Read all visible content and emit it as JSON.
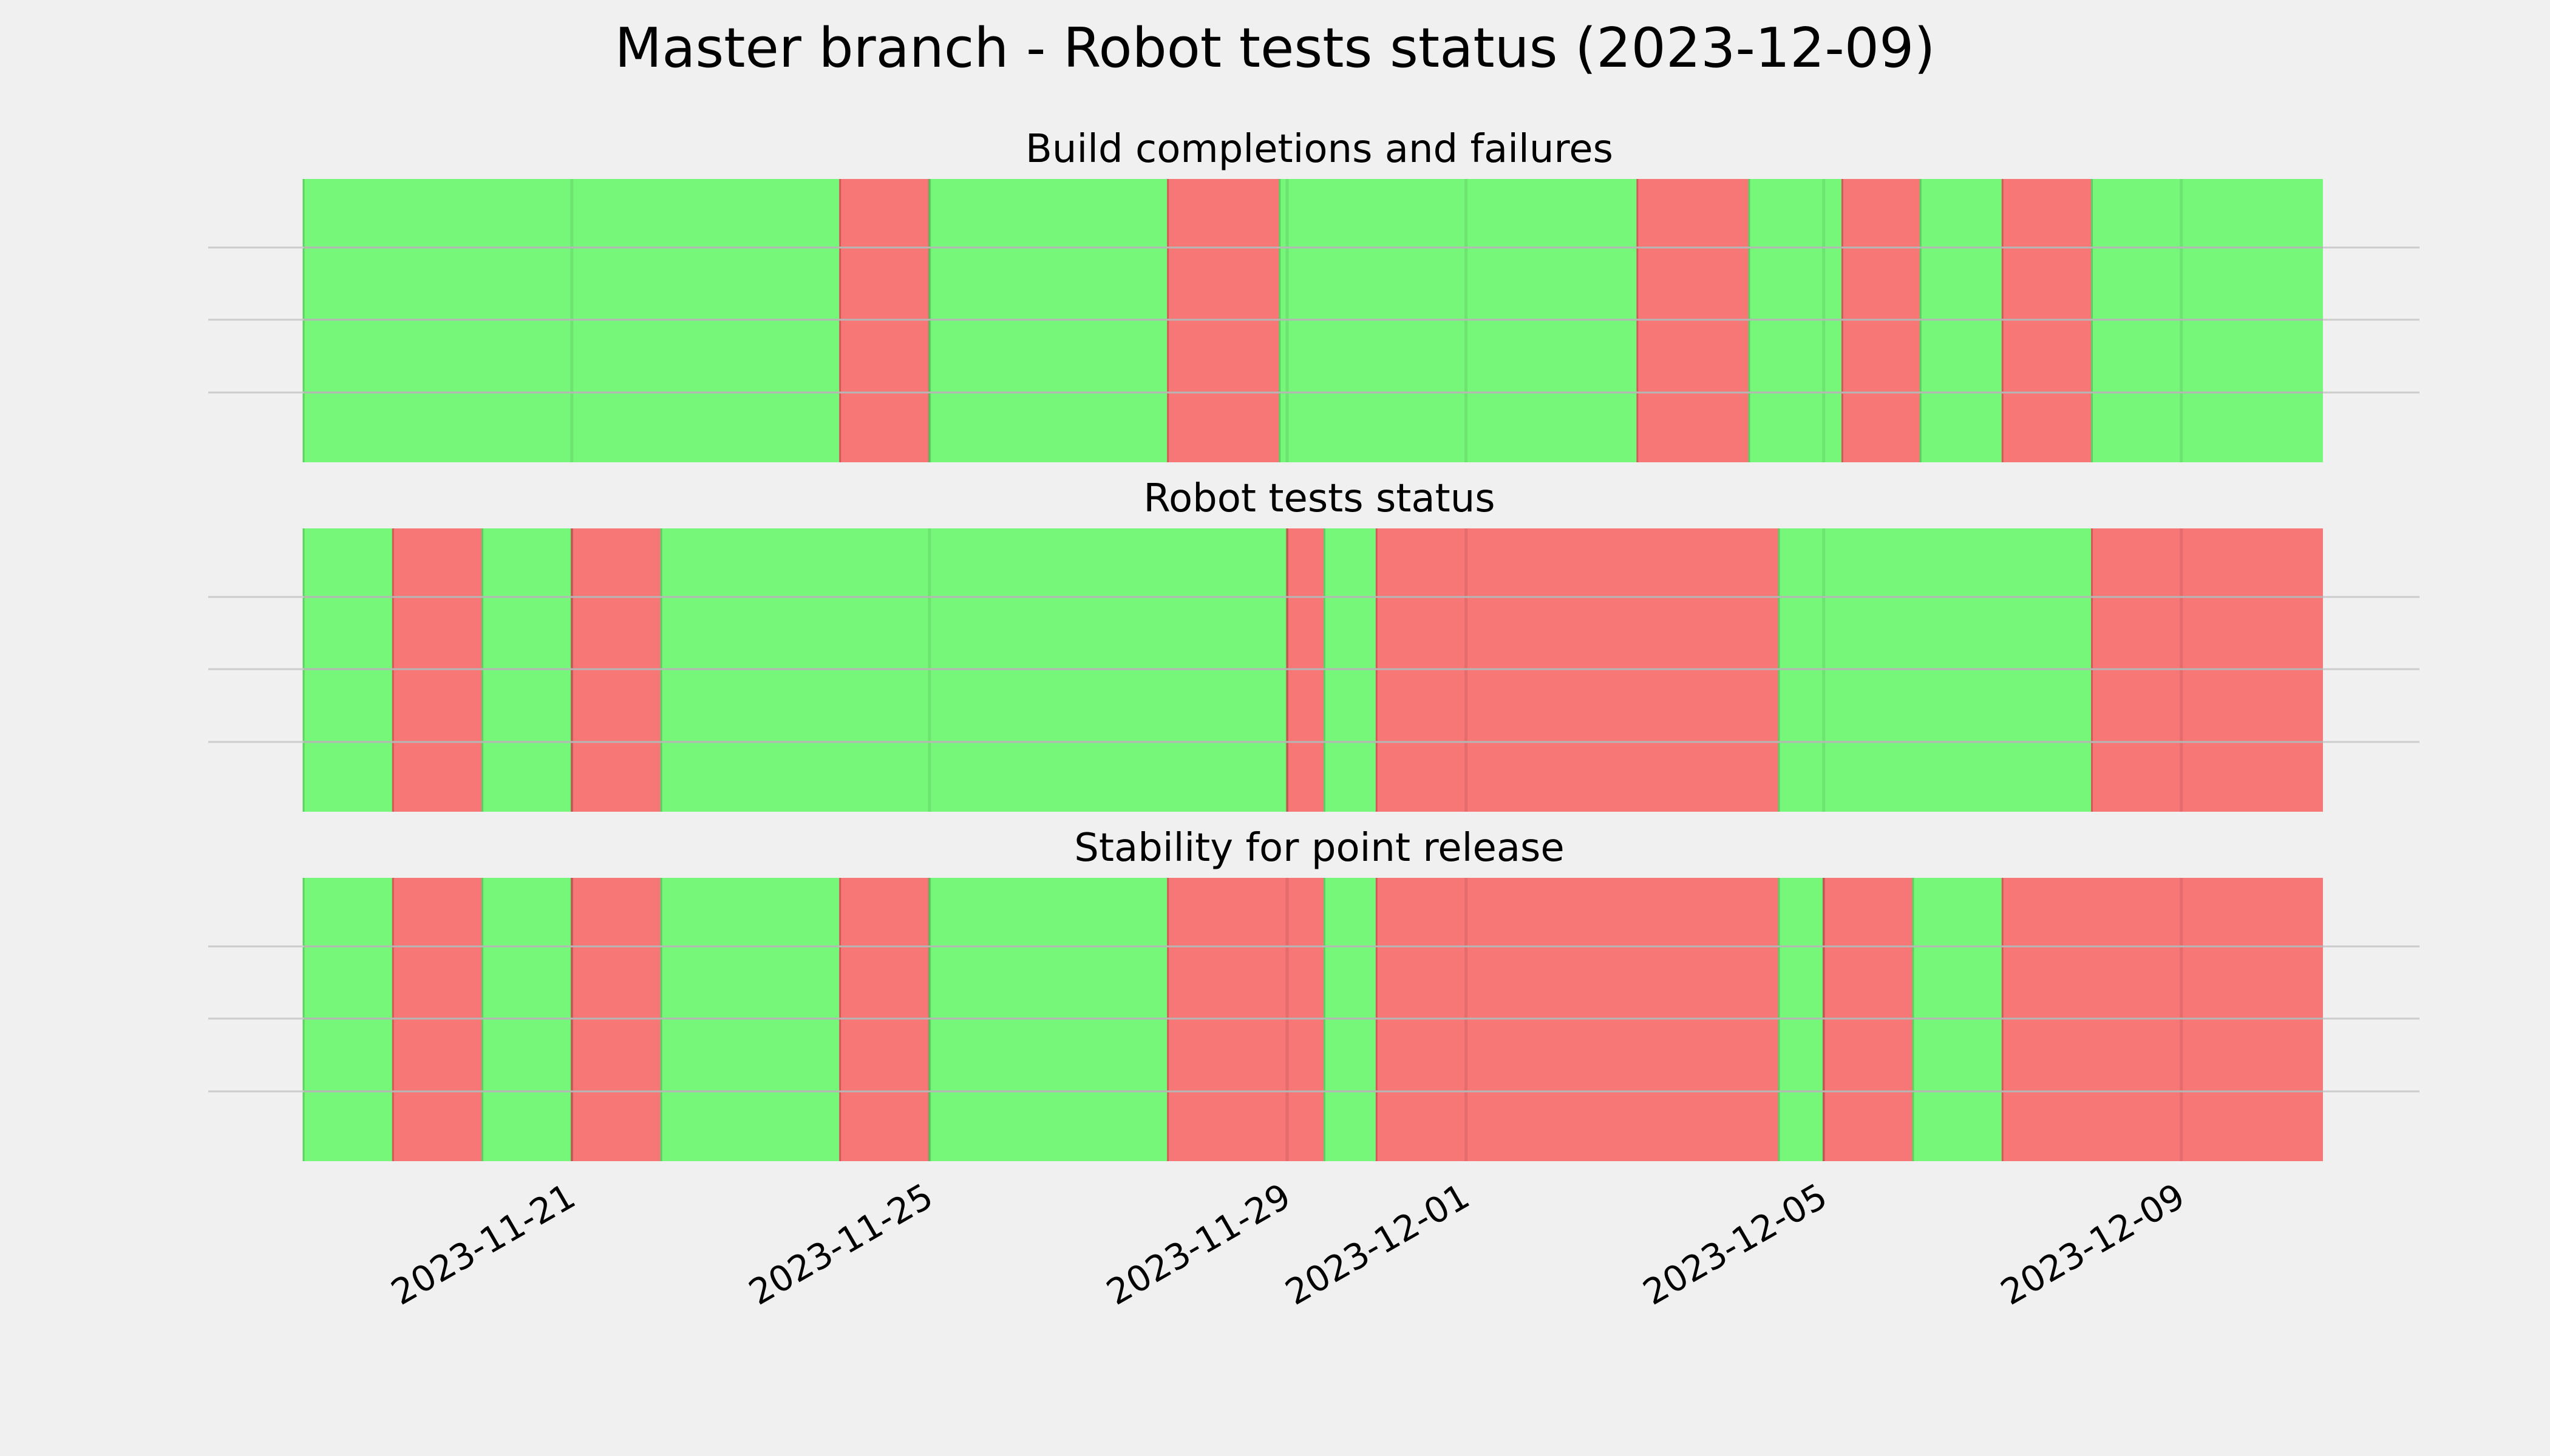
{
  "chart_data": {
    "type": "timeline",
    "title": "Master branch - Robot tests status (2023-12-09)",
    "date_range": [
      "2023-11-18",
      "2023-12-10 14:00"
    ],
    "x_ticks": [
      "2023-11-21",
      "2023-11-25",
      "2023-11-29",
      "2023-12-01",
      "2023-12-05",
      "2023-12-09"
    ],
    "colors": {
      "pass": "#77f77a",
      "fail": "#f77777",
      "background": "#f0f0f0",
      "grid": "#cbcbcb"
    },
    "legend": "none",
    "grid": true,
    "panels": [
      {
        "title": "Build completions and failures",
        "segments": [
          {
            "start": "2023-11-18",
            "end": "2023-11-24",
            "status": "pass"
          },
          {
            "start": "2023-11-24",
            "end": "2023-11-25",
            "status": "fail"
          },
          {
            "start": "2023-11-25",
            "end": "2023-11-27 16:00",
            "status": "pass"
          },
          {
            "start": "2023-11-27 16:00",
            "end": "2023-11-28 22:00",
            "status": "fail"
          },
          {
            "start": "2023-11-28 22:00",
            "end": "2023-12-02 22:00",
            "status": "pass"
          },
          {
            "start": "2023-12-02 22:00",
            "end": "2023-12-04 04:00",
            "status": "fail"
          },
          {
            "start": "2023-12-04 04:00",
            "end": "2023-12-05 05:00",
            "status": "pass"
          },
          {
            "start": "2023-12-05 05:00",
            "end": "2023-12-06 02:00",
            "status": "fail"
          },
          {
            "start": "2023-12-06 02:00",
            "end": "2023-12-07",
            "status": "pass"
          },
          {
            "start": "2023-12-07",
            "end": "2023-12-08",
            "status": "fail"
          },
          {
            "start": "2023-12-08",
            "end": "2023-12-10 14:00",
            "status": "pass"
          }
        ]
      },
      {
        "title": "Robot tests status",
        "segments": [
          {
            "start": "2023-11-18",
            "end": "2023-11-19",
            "status": "pass"
          },
          {
            "start": "2023-11-19",
            "end": "2023-11-20",
            "status": "fail"
          },
          {
            "start": "2023-11-20",
            "end": "2023-11-21",
            "status": "pass"
          },
          {
            "start": "2023-11-21",
            "end": "2023-11-22",
            "status": "fail"
          },
          {
            "start": "2023-11-22",
            "end": "2023-11-29",
            "status": "pass"
          },
          {
            "start": "2023-11-29",
            "end": "2023-11-29 10:00",
            "status": "fail"
          },
          {
            "start": "2023-11-29 10:00",
            "end": "2023-11-30",
            "status": "pass"
          },
          {
            "start": "2023-11-30",
            "end": "2023-12-04 12:00",
            "status": "fail"
          },
          {
            "start": "2023-12-04 12:00",
            "end": "2023-12-08",
            "status": "pass"
          },
          {
            "start": "2023-12-08",
            "end": "2023-12-10 14:00",
            "status": "fail"
          }
        ]
      },
      {
        "title": "Stability for point release",
        "segments": [
          {
            "start": "2023-11-18",
            "end": "2023-11-19",
            "status": "pass"
          },
          {
            "start": "2023-11-19",
            "end": "2023-11-20",
            "status": "fail"
          },
          {
            "start": "2023-11-20",
            "end": "2023-11-21",
            "status": "pass"
          },
          {
            "start": "2023-11-21",
            "end": "2023-11-22",
            "status": "fail"
          },
          {
            "start": "2023-11-22",
            "end": "2023-11-24",
            "status": "pass"
          },
          {
            "start": "2023-11-24",
            "end": "2023-11-25",
            "status": "fail"
          },
          {
            "start": "2023-11-25",
            "end": "2023-11-27 16:00",
            "status": "pass"
          },
          {
            "start": "2023-11-27 16:00",
            "end": "2023-11-29 10:00",
            "status": "fail"
          },
          {
            "start": "2023-11-29 10:00",
            "end": "2023-11-30",
            "status": "pass"
          },
          {
            "start": "2023-11-30",
            "end": "2023-12-04 12:00",
            "status": "fail"
          },
          {
            "start": "2023-12-04 12:00",
            "end": "2023-12-05",
            "status": "pass"
          },
          {
            "start": "2023-12-05",
            "end": "2023-12-06",
            "status": "fail"
          },
          {
            "start": "2023-12-06",
            "end": "2023-12-07",
            "status": "pass"
          },
          {
            "start": "2023-12-07",
            "end": "2023-12-10 14:00",
            "status": "fail"
          }
        ]
      }
    ]
  }
}
